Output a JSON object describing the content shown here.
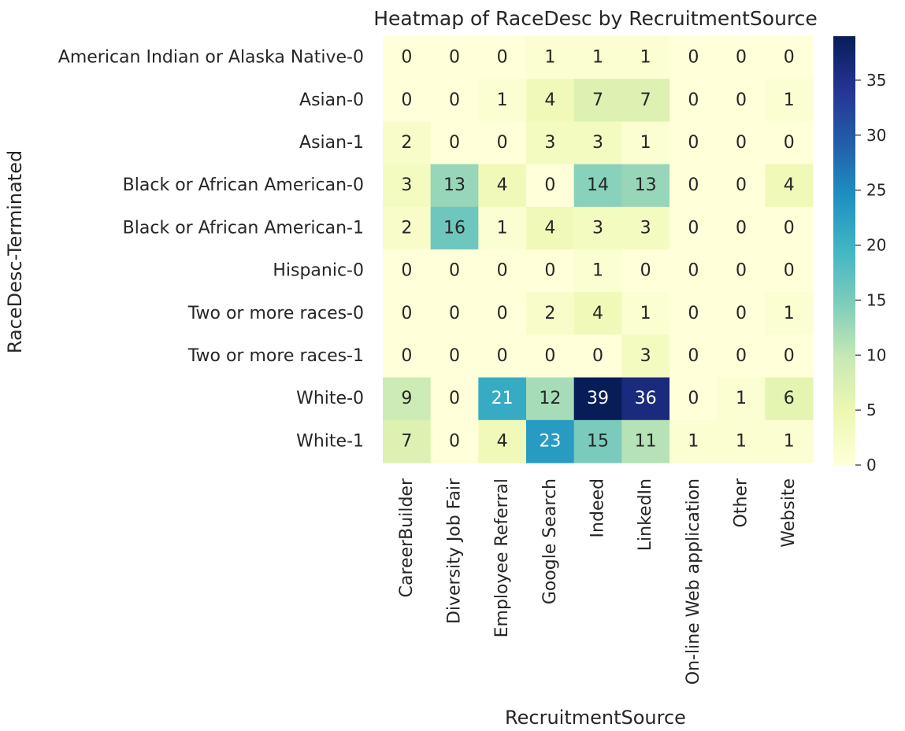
{
  "chart_data": {
    "type": "heatmap",
    "title": "Heatmap of RaceDesc by RecruitmentSource",
    "xlabel": "RecruitmentSource",
    "ylabel": "RaceDesc-Terminated",
    "x_categories": [
      "CareerBuilder",
      "Diversity Job Fair",
      "Employee Referral",
      "Google Search",
      "Indeed",
      "LinkedIn",
      "On-line Web application",
      "Other",
      "Website"
    ],
    "y_categories": [
      "American Indian or Alaska Native-0",
      "Asian-0",
      "Asian-1",
      "Black or African American-0",
      "Black or African American-1",
      "Hispanic-0",
      "Two or more races-0",
      "Two or more races-1",
      "White-0",
      "White-1"
    ],
    "values": [
      [
        0,
        0,
        0,
        1,
        1,
        1,
        0,
        0,
        0
      ],
      [
        0,
        0,
        1,
        4,
        7,
        7,
        0,
        0,
        1
      ],
      [
        2,
        0,
        0,
        3,
        3,
        1,
        0,
        0,
        0
      ],
      [
        3,
        13,
        4,
        0,
        14,
        13,
        0,
        0,
        4
      ],
      [
        2,
        16,
        1,
        4,
        3,
        3,
        0,
        0,
        0
      ],
      [
        0,
        0,
        0,
        0,
        1,
        0,
        0,
        0,
        0
      ],
      [
        0,
        0,
        0,
        2,
        4,
        1,
        0,
        0,
        1
      ],
      [
        0,
        0,
        0,
        0,
        0,
        3,
        0,
        0,
        0
      ],
      [
        9,
        0,
        21,
        12,
        39,
        36,
        0,
        1,
        6
      ],
      [
        7,
        0,
        4,
        23,
        15,
        11,
        1,
        1,
        1
      ]
    ],
    "annotated": true,
    "colormap": "YlGnBu",
    "value_range": [
      0,
      39
    ],
    "colorbar": {
      "ticks": [
        0,
        5,
        10,
        15,
        20,
        25,
        30,
        35
      ],
      "placement": "right"
    },
    "grid": false
  }
}
